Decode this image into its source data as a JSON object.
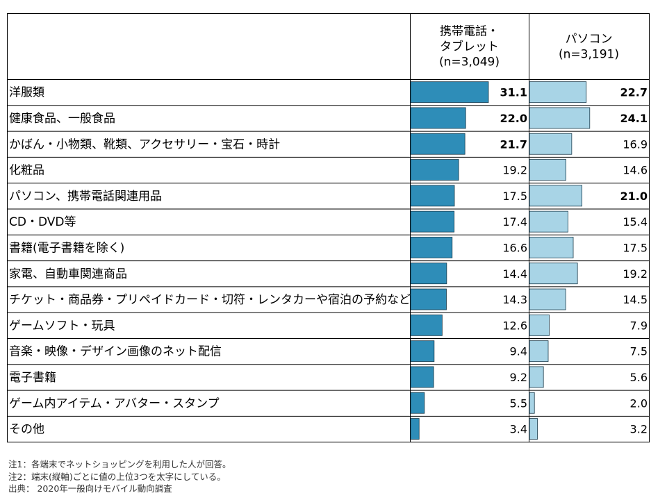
{
  "chart_data": {
    "type": "bar",
    "orientation": "horizontal",
    "categories": [
      "洋服類",
      "健康食品、一般食品",
      "かばん・小物類、靴類、アクセサリー・宝石・時計",
      "化粧品",
      "パソコン、携帯電話関連用品",
      "CD・DVD等",
      "書籍(電子書籍を除く)",
      "家電、自動車関連商品",
      "チケット・商品券・プリペイドカード・切符・レンタカーや宿泊の予約など",
      "ゲームソフト・玩具",
      "音楽・映像・デザイン画像のネット配信",
      "電子書籍",
      "ゲーム内アイテム・アバター・スタンプ",
      "その他"
    ],
    "series": [
      {
        "header_lines": [
          "携帯電話・",
          "タブレット",
          "(n=3,049)"
        ],
        "color": "#2e8db8",
        "values": [
          31.1,
          22.0,
          21.7,
          19.2,
          17.5,
          17.4,
          16.6,
          14.4,
          14.3,
          12.6,
          9.4,
          9.2,
          5.5,
          3.4
        ],
        "labels": [
          "31.1",
          "22.0",
          "21.7",
          "19.2",
          "17.5",
          "17.4",
          "16.6",
          "14.4",
          "14.3",
          "12.6",
          "9.4",
          "9.2",
          "5.5",
          "3.4"
        ],
        "bold": [
          true,
          true,
          true,
          false,
          false,
          false,
          false,
          false,
          false,
          false,
          false,
          false,
          false,
          false
        ]
      },
      {
        "header_lines": [
          "パソコン",
          "(n=3,191)"
        ],
        "color": "#a8d4e6",
        "values": [
          22.7,
          24.1,
          16.9,
          14.6,
          21.0,
          15.4,
          17.5,
          19.2,
          14.5,
          7.9,
          7.5,
          5.6,
          2.0,
          3.2
        ],
        "labels": [
          "22.7",
          "24.1",
          "16.9",
          "14.6",
          "21.0",
          "15.4",
          "17.5",
          "19.2",
          "14.5",
          "7.9",
          "7.5",
          "5.6",
          "2.0",
          "3.2"
        ],
        "bold": [
          true,
          true,
          false,
          false,
          true,
          false,
          false,
          false,
          false,
          false,
          false,
          false,
          false,
          false
        ]
      }
    ],
    "xlim": [
      0,
      33
    ],
    "bar_border_color": "#1a3a4a"
  },
  "notes": [
    "注1：各端末でネットショッピングを利用した人が回答。",
    "注2：端末(縦軸)ごとに値の上位3つを太字にしている。",
    "出典： 2020年一般向けモバイル動向調査"
  ]
}
